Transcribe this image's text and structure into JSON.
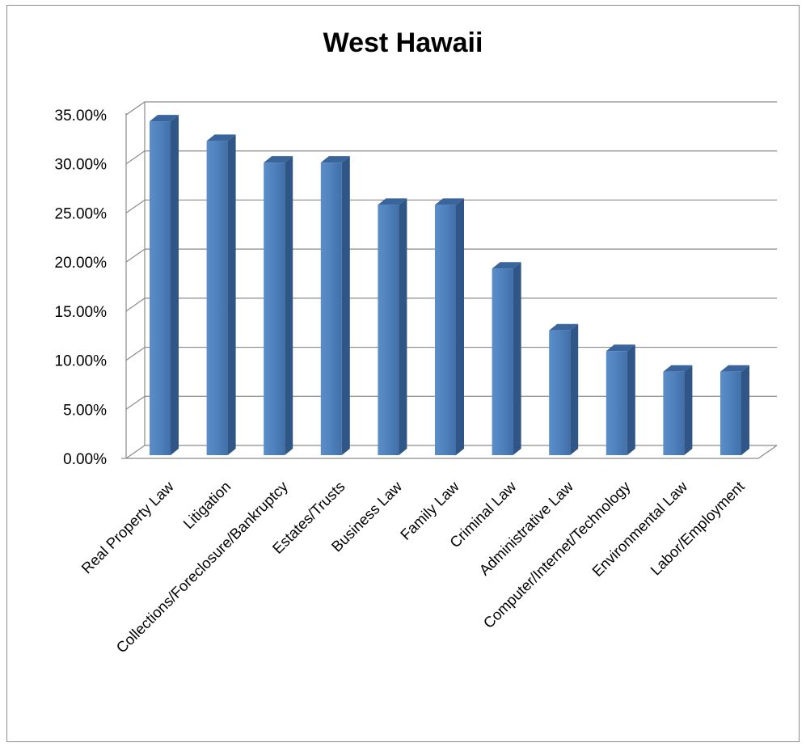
{
  "chart_data": {
    "type": "bar",
    "title": "West Hawaii",
    "categories": [
      "Real Property Law",
      "Litigation",
      "Collections/Foreclosure/Bankruptcy",
      "Estates/Trusts",
      "Business Law",
      "Family Law",
      "Criminal Law",
      "Administrative Law",
      "Computer/Internet/Technology",
      "Environmental Law",
      "Labor/Employment"
    ],
    "values": [
      0.34,
      0.32,
      0.298,
      0.298,
      0.255,
      0.255,
      0.19,
      0.127,
      0.106,
      0.085,
      0.085
    ],
    "yticks": [
      "0.00%",
      "5.00%",
      "10.00%",
      "15.00%",
      "20.00%",
      "25.00%",
      "30.00%",
      "35.00%"
    ],
    "ylim": [
      0,
      0.35
    ],
    "xlabel": "",
    "ylabel": "",
    "grid": true,
    "legend": "none",
    "bar_color": "#4f81bd"
  }
}
